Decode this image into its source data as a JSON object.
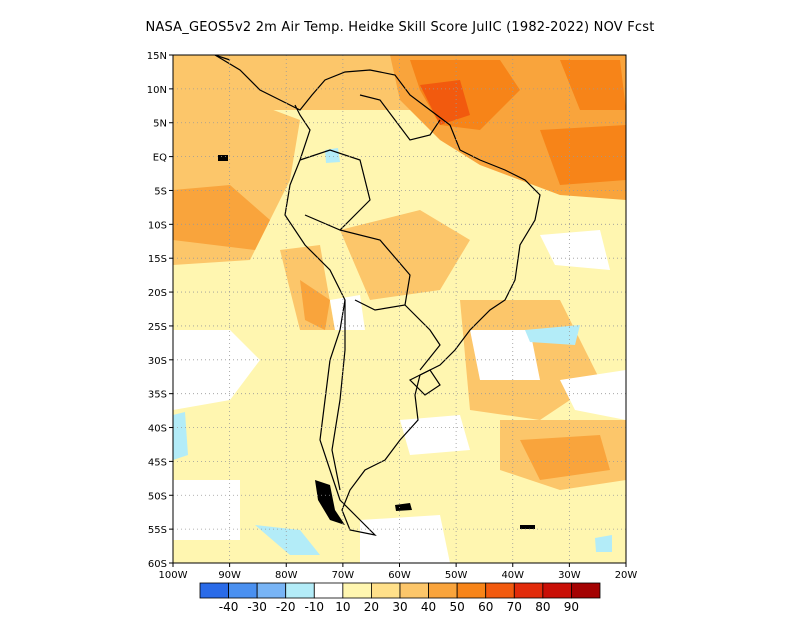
{
  "title": "NASA_GEOS5v2  2m Air Temp. Heidke Skill Score JulIC (1982-2022) NOV Fcst",
  "map": {
    "lat_labels": [
      "15N",
      "10N",
      "5N",
      "EQ",
      "5S",
      "10S",
      "15S",
      "20S",
      "25S",
      "30S",
      "35S",
      "40S",
      "45S",
      "50S",
      "55S",
      "60S"
    ],
    "lon_labels": [
      "100W",
      "90W",
      "80W",
      "70W",
      "60W",
      "50W",
      "40W",
      "30W",
      "20W"
    ],
    "lat_range": [
      -60,
      15
    ],
    "lon_range": [
      -100,
      -20
    ],
    "grid": "dotted"
  },
  "colorbar": {
    "colors": [
      "#2a6be8",
      "#4a90f0",
      "#78b4f5",
      "#b3ecf8",
      "#ffffff",
      "#fff6b0",
      "#ffe08a",
      "#fcc66a",
      "#f9a43c",
      "#f78418",
      "#f25a0e",
      "#e22b0a",
      "#c90f06",
      "#a40202"
    ],
    "labels": [
      "-40",
      "-30",
      "-20",
      "-10",
      "10",
      "20",
      "30",
      "40",
      "50",
      "60",
      "70",
      "80",
      "90"
    ]
  }
}
